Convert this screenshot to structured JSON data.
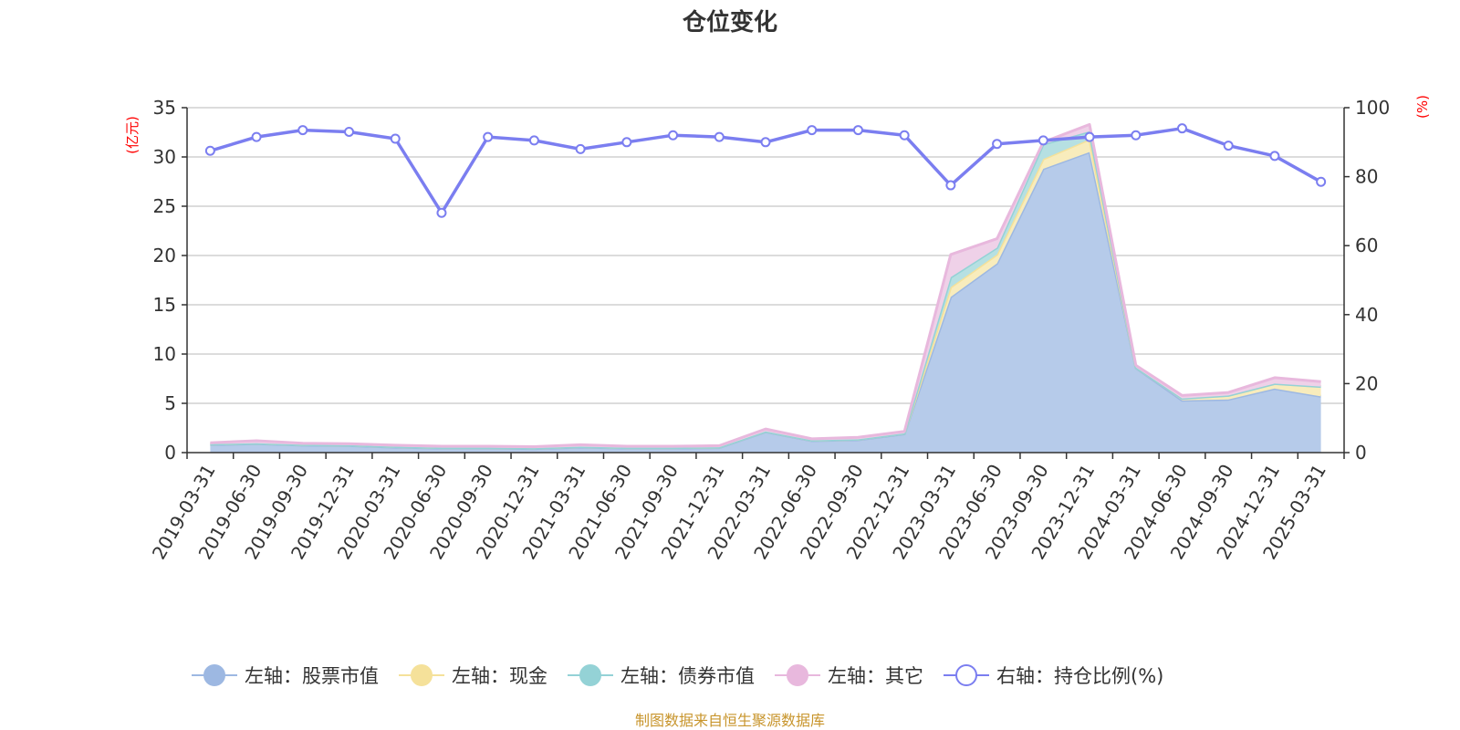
{
  "title": "仓位变化",
  "source": "制图数据来自恒生聚源数据库",
  "chart_data": {
    "type": "area",
    "title": "仓位变化",
    "categories": [
      "2019-03-31",
      "2019-06-30",
      "2019-09-30",
      "2019-12-31",
      "2020-03-31",
      "2020-06-30",
      "2020-09-30",
      "2020-12-31",
      "2021-03-31",
      "2021-06-30",
      "2021-09-30",
      "2021-12-31",
      "2022-03-31",
      "2022-06-30",
      "2022-09-30",
      "2022-12-31",
      "2023-03-31",
      "2023-06-30",
      "2023-09-30",
      "2023-12-31",
      "2024-03-31",
      "2024-06-30",
      "2024-09-30",
      "2024-12-31",
      "2025-03-31"
    ],
    "y_left": {
      "unit": "(亿元)",
      "ylim": [
        0,
        35
      ],
      "ticks": [
        0,
        5,
        10,
        15,
        20,
        25,
        30,
        35
      ]
    },
    "y_right": {
      "unit": "(%)",
      "ylim": [
        0,
        100
      ],
      "ticks": [
        0,
        20,
        40,
        60,
        80,
        100
      ]
    },
    "stack_series": [
      {
        "name": "左轴：股票市值",
        "color": "#9db8e2",
        "fill": "#b6cbea",
        "values": [
          0.8,
          0.9,
          0.75,
          0.7,
          0.55,
          0.45,
          0.45,
          0.4,
          0.55,
          0.45,
          0.45,
          0.5,
          2.1,
          1.2,
          1.3,
          1.9,
          15.8,
          19.2,
          28.8,
          30.5,
          8.6,
          5.3,
          5.4,
          6.5,
          5.7
        ]
      },
      {
        "name": "左轴：现金",
        "color": "#f5e19a",
        "fill": "#f8ecbc",
        "values": [
          0.05,
          0.05,
          0.05,
          0.05,
          0.05,
          0.05,
          0.05,
          0.05,
          0.05,
          0.05,
          0.05,
          0.05,
          0.05,
          0.05,
          0.05,
          0.05,
          1.0,
          0.9,
          1.0,
          1.3,
          0.05,
          0.2,
          0.4,
          0.5,
          1.0
        ]
      },
      {
        "name": "左轴：债券市值",
        "color": "#94d2d6",
        "fill": "#b6e0e2",
        "values": [
          0,
          0,
          0,
          0,
          0,
          0,
          0,
          0,
          0,
          0,
          0,
          0,
          0,
          0,
          0,
          0,
          1.0,
          0.7,
          1.5,
          0.8,
          0,
          0,
          0,
          0,
          0
        ]
      },
      {
        "name": "左轴：其它",
        "color": "#e8b8dd",
        "fill": "#efd1e8",
        "values": [
          0.15,
          0.25,
          0.15,
          0.15,
          0.15,
          0.15,
          0.15,
          0.15,
          0.2,
          0.15,
          0.15,
          0.15,
          0.25,
          0.15,
          0.2,
          0.2,
          2.3,
          0.9,
          0.2,
          0.7,
          0.2,
          0.3,
          0.3,
          0.6,
          0.5
        ]
      }
    ],
    "line_series": {
      "name": "右轴：持仓比例(%)",
      "color": "#7b7ef0",
      "values": [
        87.5,
        91.5,
        93.5,
        93,
        91,
        69.5,
        91.5,
        90.5,
        88,
        90,
        92,
        91.5,
        90,
        93.5,
        93.5,
        92,
        77.5,
        89.5,
        90.5,
        91.5,
        92,
        94,
        89,
        86,
        78.5
      ]
    },
    "grid": true,
    "legend_position": "bottom"
  }
}
